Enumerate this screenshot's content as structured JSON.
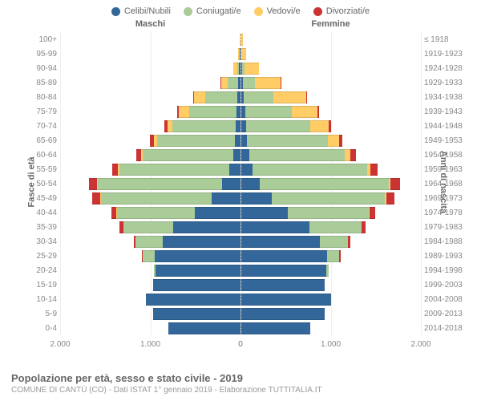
{
  "type": "population-pyramid",
  "legend": [
    {
      "label": "Celibi/Nubili",
      "color": "#336699"
    },
    {
      "label": "Coniugati/e",
      "color": "#aacc99"
    },
    {
      "label": "Vedovi/e",
      "color": "#ffcc66"
    },
    {
      "label": "Divorziati/e",
      "color": "#cc3333"
    }
  ],
  "headers": {
    "left": "Maschi",
    "right": "Femmine"
  },
  "yaxis": {
    "left_title": "Fasce di età",
    "right_title": "Anni di nascita"
  },
  "xaxis": {
    "max": 2000,
    "ticks_left": [
      "2.000",
      "1.000",
      "0"
    ],
    "ticks_right": [
      "0",
      "1.000",
      "2.000"
    ]
  },
  "age_labels": [
    "100+",
    "95-99",
    "90-94",
    "85-89",
    "80-84",
    "75-79",
    "70-74",
    "65-69",
    "60-64",
    "55-59",
    "50-54",
    "45-49",
    "40-44",
    "35-39",
    "30-34",
    "25-29",
    "20-24",
    "15-19",
    "10-14",
    "5-9",
    "0-4"
  ],
  "year_labels": [
    "≤ 1918",
    "1919-1923",
    "1924-1928",
    "1929-1933",
    "1934-1938",
    "1939-1943",
    "1944-1948",
    "1949-1953",
    "1954-1958",
    "1959-1963",
    "1964-1968",
    "1969-1973",
    "1974-1978",
    "1979-1983",
    "1984-1988",
    "1989-1993",
    "1994-1998",
    "1999-2003",
    "2004-2008",
    "2009-2013",
    "2014-2018"
  ],
  "male": [
    [
      0,
      0,
      3,
      0
    ],
    [
      2,
      3,
      15,
      0
    ],
    [
      10,
      25,
      40,
      0
    ],
    [
      20,
      120,
      70,
      5
    ],
    [
      30,
      360,
      120,
      10
    ],
    [
      40,
      530,
      110,
      20
    ],
    [
      50,
      700,
      60,
      30
    ],
    [
      60,
      860,
      40,
      40
    ],
    [
      80,
      1000,
      20,
      50
    ],
    [
      120,
      1220,
      15,
      70
    ],
    [
      200,
      1380,
      10,
      90
    ],
    [
      320,
      1230,
      5,
      90
    ],
    [
      500,
      870,
      3,
      60
    ],
    [
      740,
      560,
      0,
      40
    ],
    [
      860,
      300,
      0,
      20
    ],
    [
      950,
      130,
      0,
      8
    ],
    [
      940,
      20,
      0,
      0
    ],
    [
      970,
      0,
      0,
      0
    ],
    [
      1050,
      0,
      0,
      0
    ],
    [
      970,
      0,
      0,
      0
    ],
    [
      800,
      0,
      0,
      0
    ]
  ],
  "female": [
    [
      3,
      0,
      20,
      0
    ],
    [
      5,
      2,
      50,
      0
    ],
    [
      15,
      25,
      160,
      0
    ],
    [
      25,
      130,
      290,
      3
    ],
    [
      35,
      330,
      360,
      8
    ],
    [
      45,
      520,
      290,
      15
    ],
    [
      55,
      720,
      200,
      25
    ],
    [
      70,
      900,
      120,
      40
    ],
    [
      90,
      1060,
      70,
      55
    ],
    [
      130,
      1270,
      40,
      75
    ],
    [
      210,
      1430,
      25,
      100
    ],
    [
      340,
      1260,
      15,
      95
    ],
    [
      520,
      900,
      8,
      65
    ],
    [
      760,
      580,
      3,
      45
    ],
    [
      880,
      310,
      0,
      22
    ],
    [
      960,
      135,
      0,
      10
    ],
    [
      950,
      22,
      0,
      0
    ],
    [
      930,
      0,
      0,
      0
    ],
    [
      1000,
      0,
      0,
      0
    ],
    [
      930,
      0,
      0,
      0
    ],
    [
      770,
      0,
      0,
      0
    ]
  ],
  "colors": {
    "categories": [
      "#336699",
      "#aacc99",
      "#ffcc66",
      "#cc3333"
    ],
    "grid": "#eeeeee"
  },
  "footer": {
    "title": "Popolazione per età, sesso e stato civile - 2019",
    "subtitle": "COMUNE DI CANTÙ (CO) - Dati ISTAT 1° gennaio 2019 - Elaborazione TUTTITALIA.IT"
  }
}
